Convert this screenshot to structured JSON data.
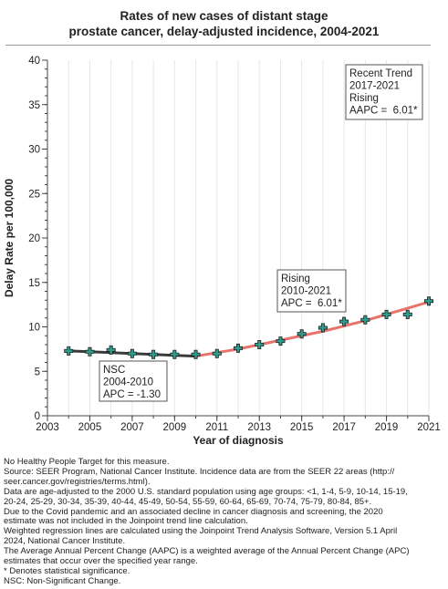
{
  "title_line1": "Rates of new cases of distant stage",
  "title_line2": "prostate cancer, delay-adjusted incidence, 2004-2021",
  "chart_data": {
    "type": "line",
    "xlabel": "Year of diagnosis",
    "ylabel": "Delay Rate per 100,000",
    "xlim": [
      2003,
      2021
    ],
    "ylim": [
      0,
      40
    ],
    "x_ticks": [
      "2003",
      "2005",
      "2007",
      "2009",
      "2011",
      "2013",
      "2015",
      "2017",
      "2019",
      "2021"
    ],
    "y_ticks": [
      "0",
      "5",
      "10",
      "15",
      "20",
      "25",
      "30",
      "35",
      "40"
    ],
    "grid": "vertical",
    "observed": {
      "x": [
        2004,
        2005,
        2006,
        2007,
        2008,
        2009,
        2010,
        2011,
        2012,
        2013,
        2014,
        2015,
        2016,
        2017,
        2018,
        2019,
        2020,
        2021
      ],
      "y": [
        7.3,
        7.2,
        7.4,
        7.0,
        6.9,
        6.9,
        6.9,
        7.0,
        7.6,
        8.0,
        8.4,
        9.2,
        9.9,
        10.6,
        10.8,
        11.4,
        11.4,
        12.9
      ]
    },
    "trend_segments": [
      {
        "x": [
          2004,
          2005,
          2006,
          2007,
          2008,
          2009,
          2010
        ],
        "y": [
          7.3,
          7.2,
          7.1,
          7.0,
          6.9,
          6.8,
          6.7
        ],
        "color": "#3b3b3b"
      },
      {
        "x": [
          2010,
          2011,
          2012,
          2013,
          2014,
          2015,
          2016,
          2017,
          2018,
          2019,
          2020,
          2021
        ],
        "y": [
          6.7,
          7.1,
          7.5,
          8.0,
          8.5,
          9.0,
          9.5,
          10.1,
          10.7,
          11.4,
          12.1,
          12.8
        ],
        "color": "#e8736c"
      }
    ],
    "marker_color": "#2e9c8c",
    "annotations": [
      {
        "lines": [
          "Recent Trend",
          "2017-2021",
          "Rising",
          "AAPC =  6.01*"
        ]
      },
      {
        "lines": [
          "Rising",
          "2010-2021",
          "APC =  6.01*"
        ]
      },
      {
        "lines": [
          "NSC",
          "2004-2010",
          "APC = -1.30"
        ]
      }
    ]
  },
  "footnotes": [
    "No Healthy People Target for this measure.",
    "Source: SEER Program, National Cancer Institute. Incidence data are from the SEER 22 areas (http://",
    "seer.cancer.gov/registries/terms.html).",
    "Data are age-adjusted to the 2000 U.S. standard population using age groups: <1, 1-4, 5-9, 10-14, 15-19,",
    "20-24, 25-29, 30-34, 35-39, 40-44, 45-49, 50-54, 55-59, 60-64, 65-69, 70-74, 75-79, 80-84, 85+.",
    "Due to the Covid pandemic and an associated decline in cancer diagnosis and screening, the 2020",
    "estimate was not included in the Joinpoint trend line calculation.",
    "Weighted regression lines are calculated using the Joinpoint Trend Analysis Software, Version 5.1 April",
    "2024, National Cancer Institute.",
    "The Average Annual Percent Change (AAPC) is a weighted average of the Annual Percent Change (APC)",
    "estimates that occur over the specified year range.",
    "* Denotes statistical significance.",
    "NSC: Non-Significant Change."
  ]
}
